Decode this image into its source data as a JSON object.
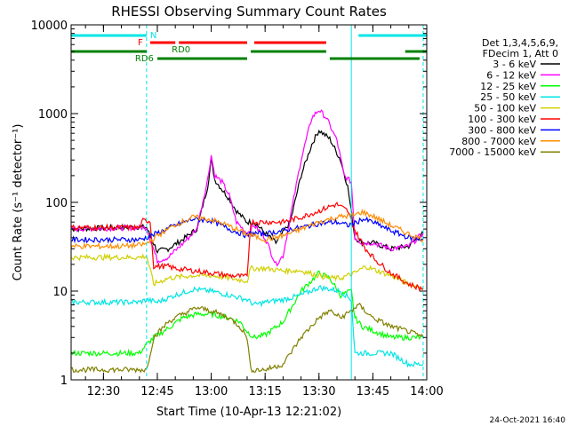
{
  "chart_data": {
    "type": "line",
    "title": "RHESSI Observing Summary Count Rates",
    "xlabel": "Start Time (10-Apr-13 12:21:02)",
    "ylabel": "Count Rate (s⁻¹ detector⁻¹)",
    "ylim": [
      1,
      10000
    ],
    "yscale": "log",
    "xlim": [
      "12:21",
      "14:00"
    ],
    "x_ticks": [
      "12:30",
      "12:45",
      "13:00",
      "13:15",
      "13:30",
      "13:45",
      "14:00"
    ],
    "y_ticks": [
      "1",
      "10",
      "100",
      "1000",
      "10000"
    ],
    "footer": "24-Oct-2021 16:40",
    "legend": {
      "position": "right",
      "header": [
        "Det 1,3,4,5,6,9,",
        "FDecim 1, Att 0"
      ]
    },
    "flags": [
      {
        "label": "N",
        "color": "#00e5e5",
        "segments": [
          [
            "12:21",
            "12:42"
          ],
          [
            "13:41",
            "14:00"
          ]
        ]
      },
      {
        "label": "F",
        "color": "#ff0000",
        "segments": [
          [
            "12:43",
            "12:50"
          ],
          [
            "12:51",
            "13:10"
          ],
          [
            "13:12",
            "13:32"
          ]
        ]
      },
      {
        "label": "RD0",
        "color": "#008000",
        "segments": [
          [
            "12:21",
            "12:42"
          ],
          [
            "13:11",
            "13:32"
          ],
          [
            "13:54",
            "14:00"
          ]
        ]
      },
      {
        "label": "RD6",
        "color": "#008000",
        "segments": [
          [
            "12:45",
            "13:10"
          ],
          [
            "13:33",
            "13:58"
          ]
        ]
      }
    ],
    "vlines": [
      {
        "x": "12:42",
        "color": "#00e5e5",
        "style": "dashed"
      },
      {
        "x": "13:39",
        "color": "#00e5e5",
        "style": "solid"
      },
      {
        "x": "13:59",
        "color": "#00e5e5",
        "style": "dashed"
      }
    ],
    "series": [
      {
        "name": "3 - 6 keV",
        "color": "#000000",
        "points": [
          [
            "12:21",
            50
          ],
          [
            "12:40",
            53
          ],
          [
            "12:42",
            52
          ],
          [
            "12:45",
            28
          ],
          [
            "12:48",
            30
          ],
          [
            "12:52",
            38
          ],
          [
            "12:56",
            50
          ],
          [
            "12:59",
            150
          ],
          [
            "13:00",
            300
          ],
          [
            "13:01",
            180
          ],
          [
            "13:03",
            140
          ],
          [
            "13:05",
            110
          ],
          [
            "13:07",
            80
          ],
          [
            "13:10",
            60
          ],
          [
            "13:12",
            60
          ],
          [
            "13:15",
            45
          ],
          [
            "13:18",
            35
          ],
          [
            "13:22",
            60
          ],
          [
            "13:25",
            200
          ],
          [
            "13:28",
            450
          ],
          [
            "13:30",
            650
          ],
          [
            "13:33",
            520
          ],
          [
            "13:36",
            300
          ],
          [
            "13:38",
            150
          ],
          [
            "13:40",
            40
          ],
          [
            "13:42",
            35
          ],
          [
            "13:45",
            35
          ],
          [
            "13:50",
            30
          ],
          [
            "13:55",
            32
          ],
          [
            "13:59",
            45
          ]
        ]
      },
      {
        "name": "6 - 12 keV",
        "color": "#ff00ff",
        "points": [
          [
            "12:21",
            50
          ],
          [
            "12:40",
            52
          ],
          [
            "12:42",
            52
          ],
          [
            "12:45",
            22
          ],
          [
            "12:48",
            24
          ],
          [
            "12:52",
            34
          ],
          [
            "12:56",
            50
          ],
          [
            "12:59",
            180
          ],
          [
            "13:00",
            340
          ],
          [
            "13:01",
            200
          ],
          [
            "13:03",
            170
          ],
          [
            "13:05",
            120
          ],
          [
            "13:07",
            60
          ],
          [
            "13:10",
            45
          ],
          [
            "13:12",
            55
          ],
          [
            "13:15",
            40
          ],
          [
            "13:18",
            20
          ],
          [
            "13:20",
            25
          ],
          [
            "13:25",
            300
          ],
          [
            "13:28",
            900
          ],
          [
            "13:30",
            1100
          ],
          [
            "13:32",
            900
          ],
          [
            "13:35",
            500
          ],
          [
            "13:37",
            200
          ],
          [
            "13:39",
            170
          ],
          [
            "13:40",
            40
          ],
          [
            "13:42",
            35
          ],
          [
            "13:45",
            35
          ],
          [
            "13:50",
            30
          ],
          [
            "13:55",
            32
          ],
          [
            "13:59",
            45
          ]
        ]
      },
      {
        "name": "12 - 25 keV",
        "color": "#00ff00",
        "points": [
          [
            "12:21",
            2
          ],
          [
            "12:40",
            2
          ],
          [
            "12:42",
            2.5
          ],
          [
            "12:44",
            3
          ],
          [
            "12:48",
            3.8
          ],
          [
            "12:52",
            5
          ],
          [
            "12:56",
            5.5
          ],
          [
            "13:00",
            5.5
          ],
          [
            "13:05",
            5
          ],
          [
            "13:08",
            4.5
          ],
          [
            "13:10",
            3.5
          ],
          [
            "13:12",
            3
          ],
          [
            "13:15",
            3.2
          ],
          [
            "13:20",
            4.5
          ],
          [
            "13:25",
            10
          ],
          [
            "13:30",
            16
          ],
          [
            "13:33",
            14
          ],
          [
            "13:36",
            9
          ],
          [
            "13:39",
            10
          ],
          [
            "13:40",
            5
          ],
          [
            "13:42",
            4
          ],
          [
            "13:50",
            3
          ],
          [
            "13:59",
            3
          ]
        ]
      },
      {
        "name": "25 - 50 keV",
        "color": "#00e5e5",
        "points": [
          [
            "12:21",
            7.5
          ],
          [
            "12:40",
            7.5
          ],
          [
            "12:42",
            8
          ],
          [
            "12:45",
            7.5
          ],
          [
            "12:50",
            9
          ],
          [
            "12:55",
            10.5
          ],
          [
            "13:00",
            10
          ],
          [
            "13:05",
            9
          ],
          [
            "13:10",
            8
          ],
          [
            "13:12",
            7
          ],
          [
            "13:15",
            7.5
          ],
          [
            "13:20",
            8
          ],
          [
            "13:25",
            9
          ],
          [
            "13:30",
            11
          ],
          [
            "13:33",
            10.5
          ],
          [
            "13:36",
            10
          ],
          [
            "13:39",
            8
          ],
          [
            "13:40",
            2
          ],
          [
            "13:45",
            2
          ],
          [
            "13:50",
            2
          ],
          [
            "13:55",
            1.5
          ],
          [
            "13:59",
            1.5
          ]
        ]
      },
      {
        "name": "50 - 100 keV",
        "color": "#d0d000",
        "points": [
          [
            "12:21",
            24
          ],
          [
            "12:40",
            24
          ],
          [
            "12:42",
            25
          ],
          [
            "12:44",
            12
          ],
          [
            "12:48",
            14
          ],
          [
            "12:55",
            15
          ],
          [
            "13:00",
            15
          ],
          [
            "13:05",
            14
          ],
          [
            "13:10",
            13
          ],
          [
            "13:11",
            18
          ],
          [
            "13:15",
            18
          ],
          [
            "13:20",
            17
          ],
          [
            "13:25",
            17
          ],
          [
            "13:30",
            15
          ],
          [
            "13:33",
            14
          ],
          [
            "13:36",
            14
          ],
          [
            "13:40",
            16
          ],
          [
            "13:43",
            19
          ],
          [
            "13:46",
            17
          ],
          [
            "13:50",
            15
          ],
          [
            "13:55",
            12
          ],
          [
            "13:59",
            11
          ]
        ]
      },
      {
        "name": "100 - 300 keV",
        "color": "#ff0000",
        "points": [
          [
            "12:21",
            52
          ],
          [
            "12:40",
            52
          ],
          [
            "12:41",
            62
          ],
          [
            "12:43",
            62
          ],
          [
            "12:44",
            19
          ],
          [
            "12:48",
            19
          ],
          [
            "12:50",
            18
          ],
          [
            "12:55",
            17
          ],
          [
            "13:00",
            16
          ],
          [
            "13:05",
            15
          ],
          [
            "13:10",
            14.5
          ],
          [
            "13:11",
            60
          ],
          [
            "13:15",
            60
          ],
          [
            "13:20",
            60
          ],
          [
            "13:25",
            68
          ],
          [
            "13:30",
            80
          ],
          [
            "13:33",
            90
          ],
          [
            "13:35",
            95
          ],
          [
            "13:38",
            80
          ],
          [
            "13:40",
            48
          ],
          [
            "13:43",
            30
          ],
          [
            "13:46",
            22
          ],
          [
            "13:50",
            16
          ],
          [
            "13:55",
            12
          ],
          [
            "13:59",
            10.5
          ]
        ]
      },
      {
        "name": "300 - 800 keV",
        "color": "#0000ff",
        "points": [
          [
            "12:21",
            38
          ],
          [
            "12:35",
            38
          ],
          [
            "12:40",
            38
          ],
          [
            "12:42",
            40
          ],
          [
            "12:45",
            45
          ],
          [
            "12:50",
            55
          ],
          [
            "12:55",
            65
          ],
          [
            "13:00",
            62
          ],
          [
            "13:05",
            50
          ],
          [
            "13:10",
            42
          ],
          [
            "13:11",
            45
          ],
          [
            "13:15",
            44
          ],
          [
            "13:20",
            48
          ],
          [
            "13:25",
            52
          ],
          [
            "13:30",
            58
          ],
          [
            "13:35",
            60
          ],
          [
            "13:38",
            55
          ],
          [
            "13:40",
            58
          ],
          [
            "13:42",
            65
          ],
          [
            "13:45",
            60
          ],
          [
            "13:50",
            48
          ],
          [
            "13:55",
            40
          ],
          [
            "13:59",
            38
          ]
        ]
      },
      {
        "name": "800 - 7000 keV",
        "color": "#ff8c00",
        "points": [
          [
            "12:21",
            32
          ],
          [
            "12:35",
            32
          ],
          [
            "12:40",
            33
          ],
          [
            "12:42",
            34
          ],
          [
            "12:45",
            42
          ],
          [
            "12:50",
            56
          ],
          [
            "12:55",
            68
          ],
          [
            "13:00",
            64
          ],
          [
            "13:05",
            54
          ],
          [
            "13:10",
            44
          ],
          [
            "13:15",
            38
          ],
          [
            "13:20",
            42
          ],
          [
            "13:25",
            50
          ],
          [
            "13:30",
            60
          ],
          [
            "13:35",
            68
          ],
          [
            "13:40",
            72
          ],
          [
            "13:42",
            78
          ],
          [
            "13:45",
            70
          ],
          [
            "13:50",
            55
          ],
          [
            "13:55",
            44
          ],
          [
            "13:59",
            38
          ]
        ]
      },
      {
        "name": "7000 - 15000 keV",
        "color": "#808000",
        "points": [
          [
            "12:21",
            1.3
          ],
          [
            "12:40",
            1.3
          ],
          [
            "12:42",
            1.3
          ],
          [
            "12:44",
            3
          ],
          [
            "12:48",
            4.5
          ],
          [
            "12:52",
            5.5
          ],
          [
            "12:56",
            6.5
          ],
          [
            "13:00",
            6
          ],
          [
            "13:05",
            5
          ],
          [
            "13:08",
            4
          ],
          [
            "13:10",
            3
          ],
          [
            "13:11",
            1.3
          ],
          [
            "13:15",
            1.3
          ],
          [
            "13:20",
            1.5
          ],
          [
            "13:25",
            3
          ],
          [
            "13:30",
            5
          ],
          [
            "13:33",
            6
          ],
          [
            "13:36",
            5
          ],
          [
            "13:39",
            6
          ],
          [
            "13:41",
            7
          ],
          [
            "13:45",
            5
          ],
          [
            "13:50",
            4
          ],
          [
            "13:55",
            3.5
          ],
          [
            "13:59",
            3
          ]
        ]
      }
    ]
  }
}
